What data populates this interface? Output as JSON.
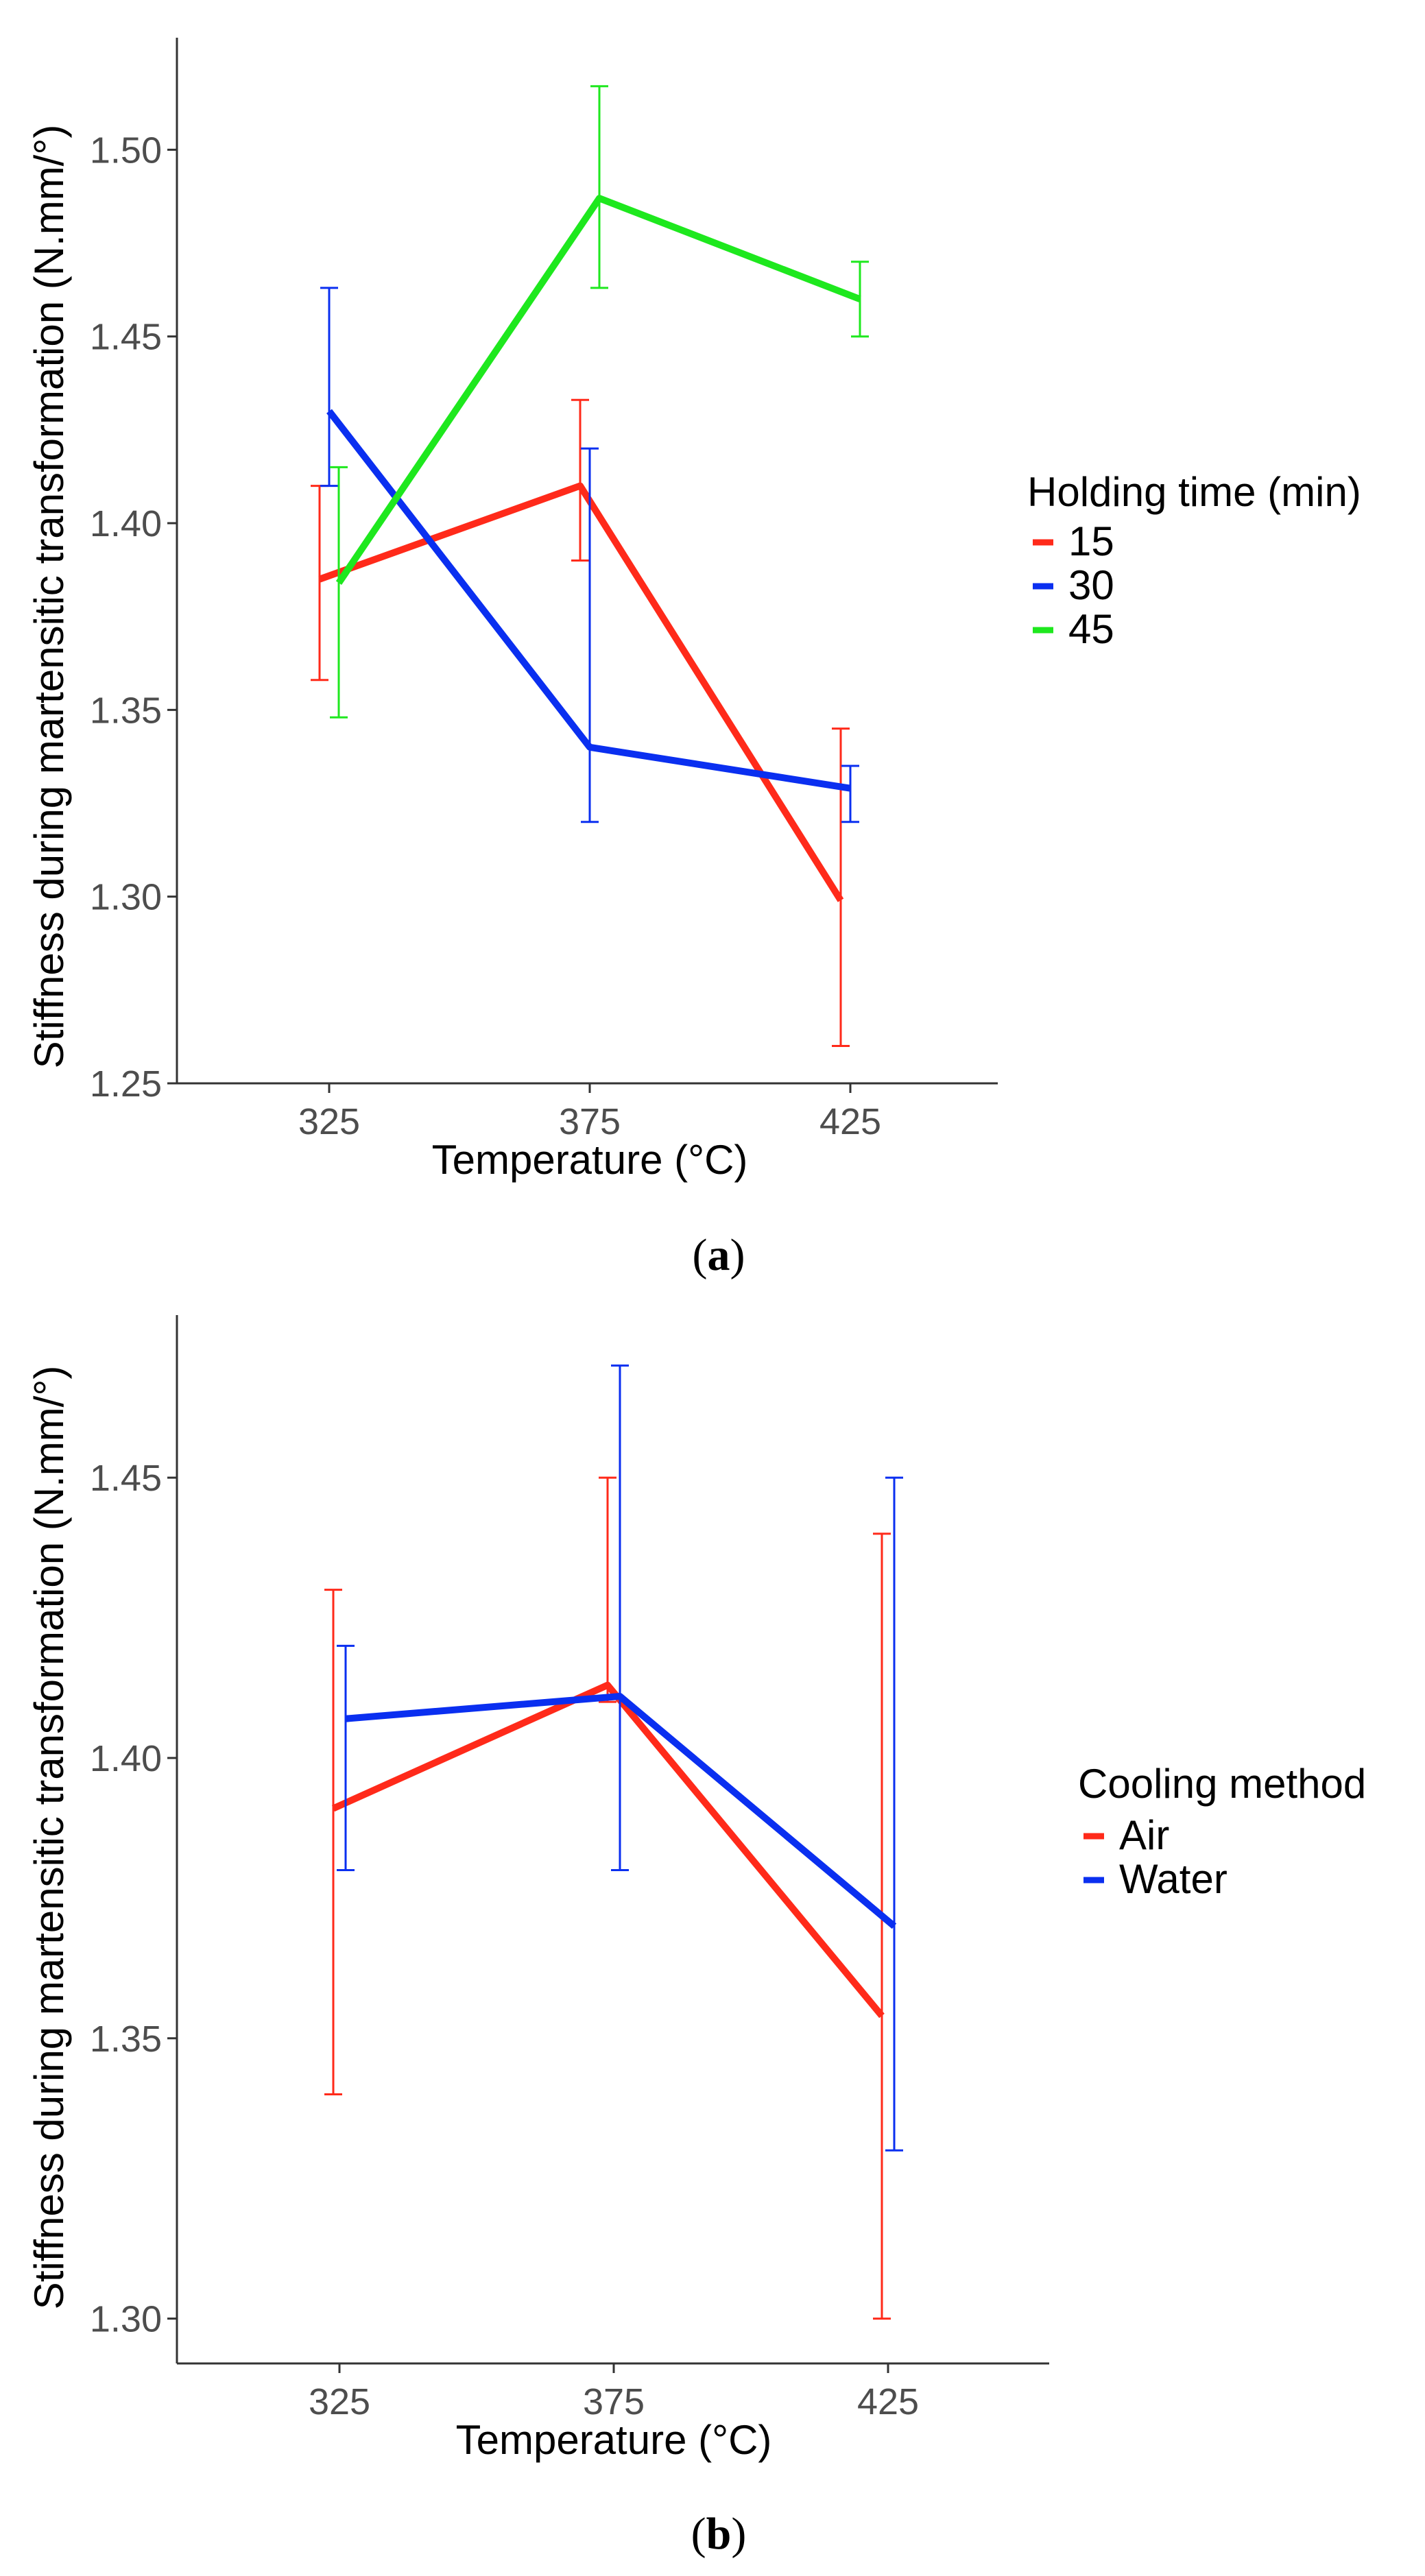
{
  "chart_data": [
    {
      "id": "a",
      "type": "line",
      "caption_letter": "a",
      "xlabel": "Temperature (°C)",
      "ylabel": "Stiffness during martensitic transformation (N.mm/°)",
      "categories": [
        "325",
        "375",
        "425"
      ],
      "ylim": [
        1.25,
        1.53
      ],
      "yticks": [
        1.25,
        1.3,
        1.35,
        1.4,
        1.45,
        1.5
      ],
      "ytick_labels": [
        "1.25",
        "1.30",
        "1.35",
        "1.40",
        "1.45",
        "1.50"
      ],
      "grid": false,
      "legend": {
        "title": "Holding time (min)",
        "position": "right"
      },
      "series": [
        {
          "name": "15",
          "color": "#ff2a1a",
          "values": [
            1.385,
            1.41,
            1.299
          ],
          "err_low": [
            1.358,
            1.39,
            1.26
          ],
          "err_high": [
            1.41,
            1.433,
            1.345
          ]
        },
        {
          "name": "30",
          "color": "#0a2ff0",
          "values": [
            1.43,
            1.34,
            1.329
          ],
          "err_low": [
            1.41,
            1.32,
            1.32
          ],
          "err_high": [
            1.463,
            1.42,
            1.335
          ]
        },
        {
          "name": "45",
          "color": "#1ee81e",
          "values": [
            1.384,
            1.487,
            1.46
          ],
          "err_low": [
            1.348,
            1.463,
            1.45
          ],
          "err_high": [
            1.415,
            1.517,
            1.47
          ]
        }
      ]
    },
    {
      "id": "b",
      "type": "line",
      "caption_letter": "b",
      "xlabel": "Temperature (°C)",
      "ylabel": "Stiffness during martensitic transformation (N.mm/°)",
      "categories": [
        "325",
        "375",
        "425"
      ],
      "ylim": [
        1.292,
        1.479
      ],
      "yticks": [
        1.3,
        1.35,
        1.4,
        1.45
      ],
      "ytick_labels": [
        "1.30",
        "1.35",
        "1.40",
        "1.45"
      ],
      "grid": false,
      "legend": {
        "title": "Cooling method",
        "position": "right"
      },
      "series": [
        {
          "name": "Air",
          "color": "#ff2a1a",
          "values": [
            1.391,
            1.413,
            1.354
          ],
          "err_low": [
            1.34,
            1.41,
            1.3
          ],
          "err_high": [
            1.43,
            1.45,
            1.44
          ]
        },
        {
          "name": "Water",
          "color": "#0a2ff0",
          "values": [
            1.407,
            1.411,
            1.37
          ],
          "err_low": [
            1.38,
            1.38,
            1.33
          ],
          "err_high": [
            1.42,
            1.47,
            1.45
          ]
        }
      ]
    }
  ]
}
